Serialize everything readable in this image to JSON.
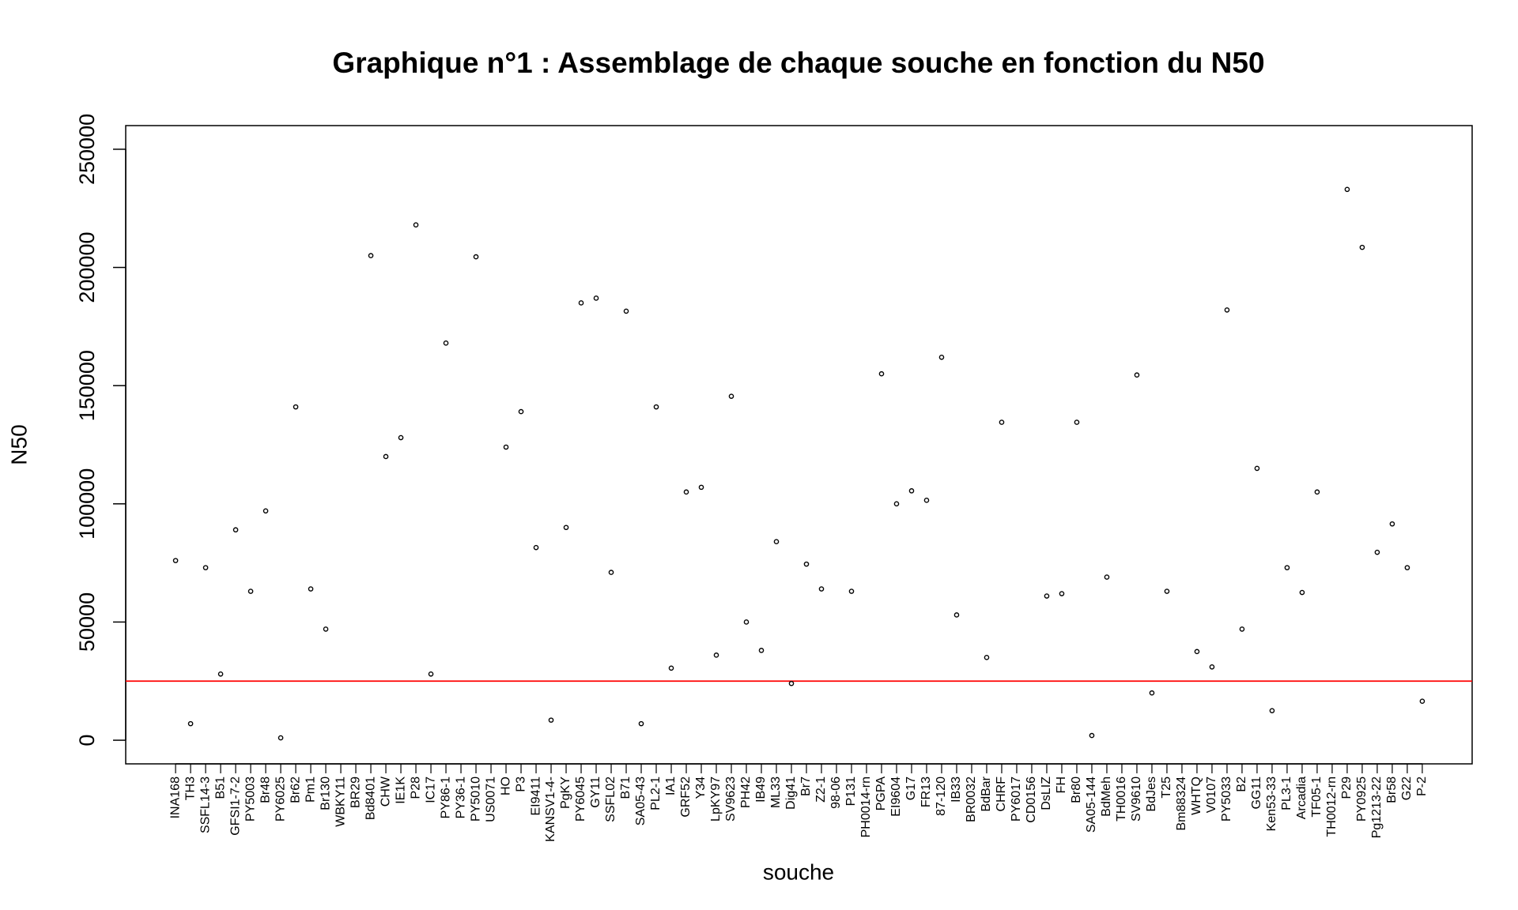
{
  "chart_data": {
    "type": "scatter",
    "title": "Graphique n°1 : Assemblage de chaque souche en fonction du N50",
    "x_label": "souche",
    "y_label": "N50",
    "categories": [
      "INA168",
      "TH3",
      "SSFL14-3",
      "B51",
      "GFSI1-7-2",
      "PY5003",
      "Br48",
      "PY6025",
      "Br62",
      "Pm1",
      "Br130",
      "WBKY11",
      "BR29",
      "Bd8401",
      "CHW",
      "IE1K",
      "P28",
      "IC17",
      "PY86-1",
      "PY36-1",
      "PY5010",
      "US0071",
      "HO",
      "P3",
      "EI9411",
      "KANSV1-4-",
      "PgKY",
      "PY6045",
      "GY11",
      "SSFL02",
      "B71",
      "SA05-43",
      "PL2-1",
      "IA1",
      "GRF52",
      "Y34",
      "LpKY97",
      "SV9623",
      "PH42",
      "IB49",
      "ML33",
      "Dig41",
      "Br7",
      "Z2-1",
      "98-06",
      "P131",
      "PH0014-rn",
      "PGPA",
      "EI9604",
      "G17",
      "FR13",
      "87-120",
      "IB33",
      "BR0032",
      "BdBar",
      "CHRF",
      "PY6017",
      "CD0156",
      "DsLIZ",
      "FH",
      "Br80",
      "SA05-144",
      "BdMeh",
      "TH0016",
      "SV9610",
      "BdJes",
      "T25",
      "Bm88324",
      "WHTQ",
      "V0107",
      "PY5033",
      "B2",
      "GG11",
      "Ken53-33",
      "PL3-1",
      "Arcadia",
      "TF05-1",
      "TH0012-rn",
      "P29",
      "PY0925",
      "Pg1213-22",
      "Br58",
      "G22",
      "P-2"
    ],
    "values": [
      76000,
      7000,
      73000,
      28000,
      89000,
      63000,
      97000,
      1000,
      141000,
      64000,
      47000,
      null,
      null,
      205000,
      120000,
      128000,
      218000,
      28000,
      168000,
      null,
      204500,
      null,
      124000,
      139000,
      81500,
      8500,
      90000,
      185000,
      187000,
      71000,
      181500,
      7000,
      141000,
      30500,
      105000,
      107000,
      36000,
      145500,
      50000,
      38000,
      84000,
      24000,
      74500,
      64000,
      null,
      63000,
      null,
      155000,
      100000,
      105500,
      101500,
      162000,
      53000,
      null,
      35000,
      134500,
      null,
      null,
      61000,
      62000,
      134500,
      2000,
      69000,
      null,
      154500,
      20000,
      63000,
      null,
      37500,
      31000,
      182000,
      47000,
      115000,
      12500,
      73000,
      62500,
      105000,
      null,
      233000,
      208500,
      79500,
      91500,
      73000,
      16500
    ],
    "color": "#000000",
    "ylim": [
      -10000,
      260000
    ],
    "yticks": [
      0,
      50000,
      100000,
      150000,
      200000,
      250000
    ],
    "hline": {
      "value": 25000,
      "color": "#ff0000"
    }
  }
}
